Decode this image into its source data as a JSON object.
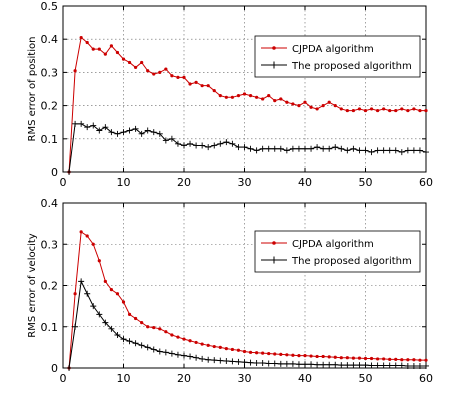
{
  "chart_data": [
    {
      "type": "line",
      "title": "",
      "xlabel": "",
      "ylabel": "RMS error of position",
      "xlim": [
        0,
        60
      ],
      "ylim": [
        0,
        0.5
      ],
      "xticks": [
        0,
        10,
        20,
        30,
        40,
        50,
        60
      ],
      "yticks": [
        0,
        0.1,
        0.2,
        0.3,
        0.4,
        0.5
      ],
      "grid": true,
      "legend_position": "top-right",
      "x": [
        1,
        2,
        3,
        4,
        5,
        6,
        7,
        8,
        9,
        10,
        11,
        12,
        13,
        14,
        15,
        16,
        17,
        18,
        19,
        20,
        21,
        22,
        23,
        24,
        25,
        26,
        27,
        28,
        29,
        30,
        31,
        32,
        33,
        34,
        35,
        36,
        37,
        38,
        39,
        40,
        41,
        42,
        43,
        44,
        45,
        46,
        47,
        48,
        49,
        50,
        51,
        52,
        53,
        54,
        55,
        56,
        57,
        58,
        59,
        60
      ],
      "series": [
        {
          "name": "CJPDA algorithm",
          "color": "#cc0000",
          "marker": "dot",
          "values": [
            0,
            0.305,
            0.405,
            0.39,
            0.37,
            0.37,
            0.355,
            0.38,
            0.36,
            0.34,
            0.33,
            0.315,
            0.33,
            0.305,
            0.295,
            0.3,
            0.31,
            0.29,
            0.285,
            0.285,
            0.265,
            0.27,
            0.26,
            0.26,
            0.245,
            0.23,
            0.225,
            0.225,
            0.23,
            0.235,
            0.23,
            0.225,
            0.22,
            0.23,
            0.215,
            0.22,
            0.21,
            0.205,
            0.2,
            0.21,
            0.195,
            0.19,
            0.2,
            0.21,
            0.2,
            0.19,
            0.185,
            0.185,
            0.19,
            0.185,
            0.19,
            0.185,
            0.19,
            0.185,
            0.185,
            0.19,
            0.185,
            0.19,
            0.185,
            0.185
          ]
        },
        {
          "name": "The proposed algorithm",
          "color": "#000000",
          "marker": "plus",
          "values": [
            0,
            0.145,
            0.145,
            0.135,
            0.14,
            0.125,
            0.135,
            0.12,
            0.115,
            0.12,
            0.125,
            0.13,
            0.115,
            0.125,
            0.12,
            0.115,
            0.095,
            0.1,
            0.085,
            0.08,
            0.085,
            0.08,
            0.08,
            0.075,
            0.08,
            0.085,
            0.09,
            0.085,
            0.075,
            0.075,
            0.07,
            0.065,
            0.07,
            0.07,
            0.07,
            0.07,
            0.065,
            0.07,
            0.07,
            0.07,
            0.07,
            0.075,
            0.07,
            0.07,
            0.075,
            0.07,
            0.065,
            0.07,
            0.065,
            0.065,
            0.06,
            0.065,
            0.065,
            0.065,
            0.065,
            0.06,
            0.065,
            0.065,
            0.065,
            0.06
          ]
        }
      ]
    },
    {
      "type": "line",
      "title": "",
      "xlabel": "",
      "ylabel": "RMS error of velocity",
      "xlim": [
        0,
        60
      ],
      "ylim": [
        0,
        0.4
      ],
      "xticks": [
        0,
        10,
        20,
        30,
        40,
        50,
        60
      ],
      "yticks": [
        0,
        0.1,
        0.2,
        0.3,
        0.4
      ],
      "grid": true,
      "legend_position": "top-right",
      "x": [
        1,
        2,
        3,
        4,
        5,
        6,
        7,
        8,
        9,
        10,
        11,
        12,
        13,
        14,
        15,
        16,
        17,
        18,
        19,
        20,
        21,
        22,
        23,
        24,
        25,
        26,
        27,
        28,
        29,
        30,
        31,
        32,
        33,
        34,
        35,
        36,
        37,
        38,
        39,
        40,
        41,
        42,
        43,
        44,
        45,
        46,
        47,
        48,
        49,
        50,
        51,
        52,
        53,
        54,
        55,
        56,
        57,
        58,
        59,
        60
      ],
      "series": [
        {
          "name": "CJPDA algorithm",
          "color": "#cc0000",
          "marker": "dot",
          "values": [
            0,
            0.18,
            0.33,
            0.32,
            0.3,
            0.26,
            0.21,
            0.19,
            0.18,
            0.16,
            0.13,
            0.12,
            0.11,
            0.1,
            0.098,
            0.095,
            0.088,
            0.08,
            0.075,
            0.07,
            0.066,
            0.062,
            0.058,
            0.055,
            0.052,
            0.05,
            0.047,
            0.045,
            0.043,
            0.04,
            0.038,
            0.037,
            0.036,
            0.035,
            0.034,
            0.033,
            0.032,
            0.031,
            0.03,
            0.03,
            0.029,
            0.028,
            0.028,
            0.027,
            0.026,
            0.025,
            0.025,
            0.024,
            0.024,
            0.023,
            0.023,
            0.022,
            0.022,
            0.021,
            0.021,
            0.02,
            0.02,
            0.02,
            0.019,
            0.019
          ]
        },
        {
          "name": "The proposed algorithm",
          "color": "#000000",
          "marker": "plus",
          "values": [
            0,
            0.1,
            0.21,
            0.18,
            0.15,
            0.13,
            0.11,
            0.095,
            0.08,
            0.07,
            0.065,
            0.06,
            0.055,
            0.05,
            0.045,
            0.04,
            0.038,
            0.035,
            0.032,
            0.03,
            0.028,
            0.025,
            0.022,
            0.02,
            0.019,
            0.018,
            0.017,
            0.016,
            0.015,
            0.014,
            0.013,
            0.012,
            0.012,
            0.011,
            0.011,
            0.01,
            0.01,
            0.01,
            0.009,
            0.009,
            0.009,
            0.008,
            0.008,
            0.008,
            0.008,
            0.007,
            0.007,
            0.007,
            0.007,
            0.007,
            0.006,
            0.006,
            0.006,
            0.006,
            0.006,
            0.006,
            0.005,
            0.005,
            0.005,
            0.005
          ]
        }
      ]
    }
  ]
}
